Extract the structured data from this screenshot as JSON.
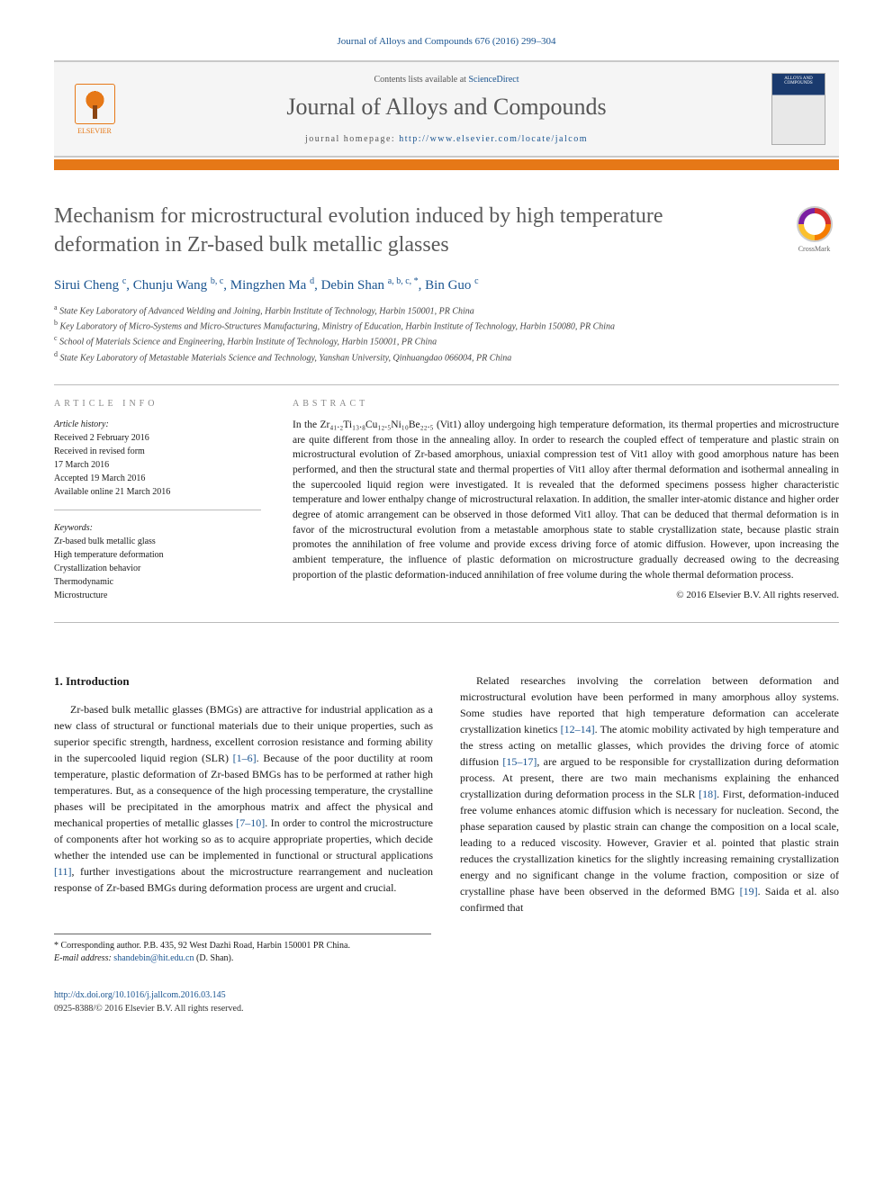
{
  "citation": "Journal of Alloys and Compounds 676 (2016) 299–304",
  "header": {
    "contents_prefix": "Contents lists available at ",
    "contents_link": "ScienceDirect",
    "journal_name": "Journal of Alloys and Compounds",
    "homepage_prefix": "journal homepage: ",
    "homepage_url": "http://www.elsevier.com/locate/jalcom",
    "publisher_label": "ELSEVIER",
    "cover_text": "ALLOYS AND COMPOUNDS"
  },
  "crossmark": "CrossMark",
  "title": "Mechanism for microstructural evolution induced by high temperature deformation in Zr-based bulk metallic glasses",
  "authors": [
    {
      "name": "Sirui Cheng ",
      "sup": "c"
    },
    {
      "name": ", Chunju Wang ",
      "sup": "b, c"
    },
    {
      "name": ", Mingzhen Ma ",
      "sup": "d"
    },
    {
      "name": ", Debin Shan ",
      "sup": "a, b, c, *"
    },
    {
      "name": ", Bin Guo ",
      "sup": "c"
    }
  ],
  "affiliations": [
    {
      "sup": "a",
      "text": " State Key Laboratory of Advanced Welding and Joining, Harbin Institute of Technology, Harbin 150001, PR China"
    },
    {
      "sup": "b",
      "text": " Key Laboratory of Micro-Systems and Micro-Structures Manufacturing, Ministry of Education, Harbin Institute of Technology, Harbin 150080, PR China"
    },
    {
      "sup": "c",
      "text": " School of Materials Science and Engineering, Harbin Institute of Technology, Harbin 150001, PR China"
    },
    {
      "sup": "d",
      "text": " State Key Laboratory of Metastable Materials Science and Technology, Yanshan University, Qinhuangdao 066004, PR China"
    }
  ],
  "article_info": {
    "label": "ARTICLE INFO",
    "history_label": "Article history:",
    "history": [
      "Received 2 February 2016",
      "Received in revised form",
      "17 March 2016",
      "Accepted 19 March 2016",
      "Available online 21 March 2016"
    ],
    "keywords_label": "Keywords:",
    "keywords": [
      "Zr-based bulk metallic glass",
      "High temperature deformation",
      "Crystallization behavior",
      "Thermodynamic",
      "Microstructure"
    ]
  },
  "abstract": {
    "label": "ABSTRACT",
    "text": "In the Zr₄₁.₂Ti₁₃.₈Cu₁₂.₅Ni₁₀Be₂₂.₅ (Vit1) alloy undergoing high temperature deformation, its thermal properties and microstructure are quite different from those in the annealing alloy. In order to research the coupled effect of temperature and plastic strain on microstructural evolution of Zr-based amorphous, uniaxial compression test of Vit1 alloy with good amorphous nature has been performed, and then the structural state and thermal properties of Vit1 alloy after thermal deformation and isothermal annealing in the supercooled liquid region were investigated. It is revealed that the deformed specimens possess higher characteristic temperature and lower enthalpy change of microstructural relaxation. In addition, the smaller inter-atomic distance and higher order degree of atomic arrangement can be observed in those deformed Vit1 alloy. That can be deduced that thermal deformation is in favor of the microstructural evolution from a metastable amorphous state to stable crystallization state, because plastic strain promotes the annihilation of free volume and provide excess driving force of atomic diffusion. However, upon increasing the ambient temperature, the influence of plastic deformation on microstructure gradually decreased owing to the decreasing proportion of the plastic deformation-induced annihilation of free volume during the whole thermal deformation process.",
    "copyright": "© 2016 Elsevier B.V. All rights reserved."
  },
  "intro": {
    "heading": "1. Introduction",
    "p1_a": "Zr-based bulk metallic glasses (BMGs) are attractive for industrial application as a new class of structural or functional materials due to their unique properties, such as superior specific strength, hardness, excellent corrosion resistance and forming ability in the supercooled liquid region (SLR) ",
    "ref1": "[1–6]",
    "p1_b": ". Because of the poor ductility at room temperature, plastic deformation of Zr-based BMGs has to be performed at rather high temperatures. But, as a consequence of the high processing temperature, the crystalline phases will be precipitated in the amorphous matrix and affect the physical and mechanical properties of metallic glasses ",
    "ref2": "[7–10]",
    "p1_c": ". In order to control the microstructure of components after hot working so as to acquire appropriate properties, which decide whether the intended use can be implemented in functional or structural applications ",
    "ref3": "[11]",
    "p1_d": ", further investigations about the microstructure rearrangement and nucleation response of Zr-based BMGs during deformation process are urgent and crucial.",
    "p2_a": "Related researches involving the correlation between deformation and microstructural evolution have been performed in many amorphous alloy systems. Some studies have reported that high temperature deformation can accelerate crystallization kinetics ",
    "ref4": "[12–14]",
    "p2_b": ". The atomic mobility activated by high temperature and the stress acting on metallic glasses, which provides the driving force of atomic diffusion ",
    "ref5": "[15–17]",
    "p2_c": ", are argued to be responsible for crystallization during deformation process. At present, there are two main mechanisms explaining the enhanced crystallization during deformation process in the SLR ",
    "ref6": "[18]",
    "p2_d": ". First, deformation-induced free volume enhances atomic diffusion which is necessary for nucleation. Second, the phase separation caused by plastic strain can change the composition on a local scale, leading to a reduced viscosity. However, Gravier et al. pointed that plastic strain reduces the crystallization kinetics for the slightly increasing remaining crystallization energy and no significant change in the volume fraction, composition or size of crystalline phase have been observed in the deformed BMG ",
    "ref7": "[19]",
    "p2_e": ". Saida et al. also confirmed that"
  },
  "footnote": {
    "corr": "* Corresponding author. P.B. 435, 92 West Dazhi Road, Harbin 150001 PR China.",
    "email_label": "E-mail address: ",
    "email": "shandebin@hit.edu.cn",
    "email_suffix": " (D. Shan)."
  },
  "bottom": {
    "doi": "http://dx.doi.org/10.1016/j.jallcom.2016.03.145",
    "issn_copy": "0925-8388/© 2016 Elsevier B.V. All rights reserved."
  },
  "colors": {
    "link": "#1a5490",
    "accent": "#e67817",
    "text_gray": "#5a5a5a"
  }
}
